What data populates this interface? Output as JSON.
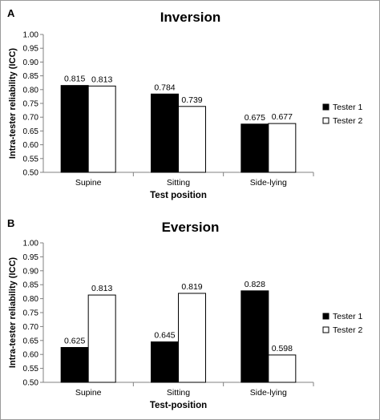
{
  "chart_data": [
    {
      "panel_label": "A",
      "type": "bar",
      "title": "Inversion",
      "xlabel": "Test position",
      "ylabel": "Intra-tester reliability (ICC)",
      "ylim": [
        0.5,
        1.0
      ],
      "yticks": [
        "0.50",
        "0.55",
        "0.60",
        "0.65",
        "0.70",
        "0.75",
        "0.80",
        "0.85",
        "0.90",
        "0.95",
        "1.00"
      ],
      "categories": [
        "Supine",
        "Sitting",
        "Side-lying"
      ],
      "series": [
        {
          "name": "Tester 1",
          "values": [
            0.815,
            0.784,
            0.675
          ],
          "labels": [
            "0.815",
            "0.784",
            "0.675"
          ],
          "color": "#000000"
        },
        {
          "name": "Tester 2",
          "values": [
            0.813,
            0.739,
            0.677
          ],
          "labels": [
            "0.813",
            "0.739",
            "0.677"
          ],
          "color": "#ffffff"
        }
      ],
      "grid": false,
      "legend": "right"
    },
    {
      "panel_label": "B",
      "type": "bar",
      "title": "Eversion",
      "xlabel": "Test-position",
      "ylabel": "Intra-tester reliability (ICC)",
      "ylim": [
        0.5,
        1.0
      ],
      "yticks": [
        "0.50",
        "0.55",
        "0.60",
        "0.65",
        "0.70",
        "0.75",
        "0.80",
        "0.85",
        "0.90",
        "0.95",
        "1.00"
      ],
      "categories": [
        "Supine",
        "Sitting",
        "Side-lying"
      ],
      "series": [
        {
          "name": "Tester 1",
          "values": [
            0.625,
            0.645,
            0.828
          ],
          "labels": [
            "0.625",
            "0.645",
            "0.828"
          ],
          "color": "#000000"
        },
        {
          "name": "Tester 2",
          "values": [
            0.813,
            0.819,
            0.598
          ],
          "labels": [
            "0.813",
            "0.819",
            "0.598"
          ],
          "color": "#ffffff"
        }
      ],
      "grid": false,
      "legend": "right"
    }
  ]
}
